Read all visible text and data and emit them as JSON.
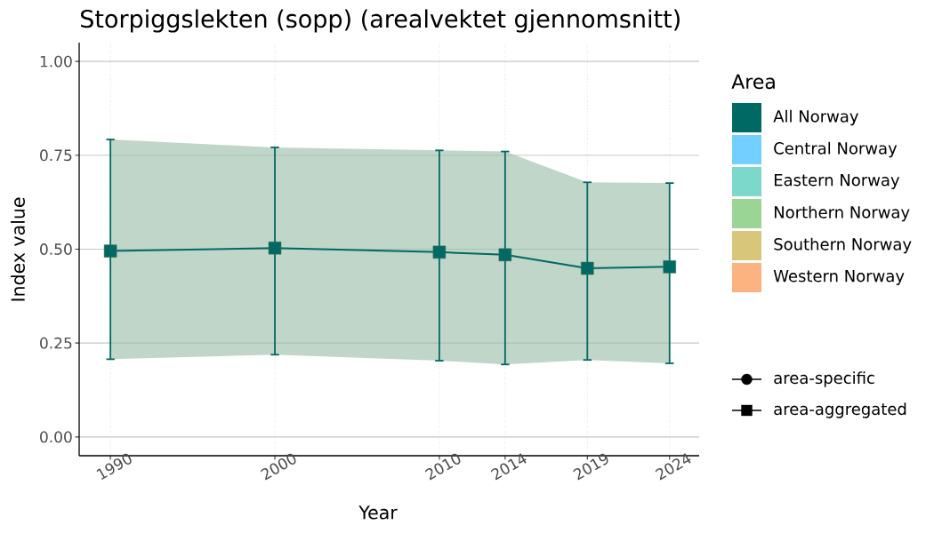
{
  "chart_data": {
    "type": "line",
    "title": "Storpiggslekten (sopp) (arealvektet gjennomsnitt)",
    "xlabel": "Year",
    "ylabel": "Index value",
    "legend_title": "Area",
    "x": [
      1990,
      2000,
      2010,
      2014,
      2019,
      2024
    ],
    "xlim": [
      1988.1,
      2025.8
    ],
    "xticks": [
      1990,
      2000,
      2010,
      2014,
      2019,
      2024
    ],
    "ylim": [
      -0.05,
      1.05
    ],
    "yticks": [
      {
        "value": 0,
        "label": "0.00"
      },
      0.25,
      {
        "value": 0.5,
        "label": "0.50"
      },
      0.75,
      {
        "value": 1,
        "label": "1.00"
      }
    ],
    "grid": true,
    "legend": "right",
    "marker": "square",
    "series": [
      {
        "name": "All Norway",
        "color": "#006964",
        "values": [
          0.495,
          0.503,
          0.492,
          0.485,
          0.449,
          0.453
        ],
        "errors": [
          [
            0.207,
            0.792
          ],
          [
            0.219,
            0.771
          ],
          [
            0.203,
            0.763
          ],
          [
            0.193,
            0.76
          ],
          [
            0.205,
            0.678
          ],
          [
            0.196,
            0.676
          ]
        ],
        "lower": [
          0.207,
          0.219,
          0.203,
          0.193,
          0.205,
          0.196
        ],
        "upper": [
          0.792,
          0.771,
          0.763,
          0.76,
          0.678,
          0.676
        ]
      },
      {
        "name": "Central Norway",
        "color": "#73cfff",
        "values": [
          null,
          null,
          null,
          null,
          null,
          null
        ]
      },
      {
        "name": "Eastern Norway",
        "color": "#7dd8cc",
        "values": [
          null,
          null,
          null,
          null,
          null,
          null
        ]
      },
      {
        "name": "Northern Norway",
        "color": "#9cd496",
        "values": [
          null,
          null,
          null,
          null,
          null,
          null
        ]
      },
      {
        "name": "Southern Norway",
        "color": "#d8c67b",
        "values": [
          null,
          null,
          null,
          null,
          null,
          null
        ]
      },
      {
        "name": "Western Norway",
        "color": "#fdb281",
        "values": [
          null,
          null,
          null,
          null,
          null,
          null
        ]
      },
      {
        "name": "area-specific",
        "color": "#000000",
        "marker": "circle",
        "values": [
          null,
          null,
          null,
          null,
          null,
          null
        ]
      },
      {
        "name": "area-aggregated",
        "color": "#000000",
        "marker": "square",
        "values": [
          null,
          null,
          null,
          null,
          null,
          null
        ]
      }
    ]
  }
}
